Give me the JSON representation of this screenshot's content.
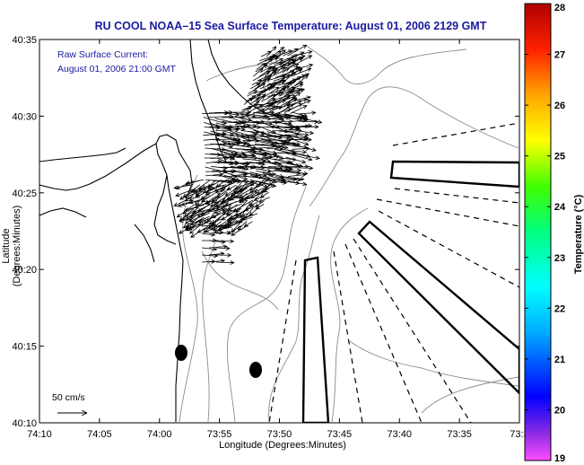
{
  "title": "RU COOL  NOAA–15  Sea Surface Temperature:  August 01, 2006 2129 GMT",
  "annotation": {
    "line1": "Raw Surface Current:",
    "line2": "August 01, 2006 21:00 GMT"
  },
  "scale_label": "50 cm/s",
  "axes": {
    "xlabel": "Longitude (Degrees:Minutes)",
    "ylabel": "Latitude (Degrees:Minutes)",
    "x_ticks": [
      "74:10",
      "74:05",
      "74:00",
      "73:55",
      "73:50",
      "73:45",
      "73:40",
      "73:35",
      "73:3"
    ],
    "y_ticks": [
      "40:35",
      "40:30",
      "40:25",
      "40:20",
      "40:15",
      "40:10"
    ]
  },
  "colorbar": {
    "title": "Temperature (°C)",
    "ticks": [
      "28",
      "27",
      "26",
      "25",
      "24",
      "23",
      "22",
      "21",
      "20",
      "19"
    ],
    "min": 19,
    "max": 28
  },
  "chart_data": {
    "type": "map",
    "lon_range": [
      "74:10",
      "73:30"
    ],
    "lat_range": [
      "40:10",
      "40:35"
    ],
    "colormap": "jet",
    "features": [
      "coastline",
      "bathymetry-contours",
      "surface-current-vectors",
      "shipping-lanes",
      "buoy-markers"
    ]
  },
  "colors": {
    "title": "#1a1aa0",
    "land": "#ffffff",
    "coast": "#000000",
    "contour": "#8c8c8c",
    "vector": "#000000",
    "lane": "#000000"
  }
}
